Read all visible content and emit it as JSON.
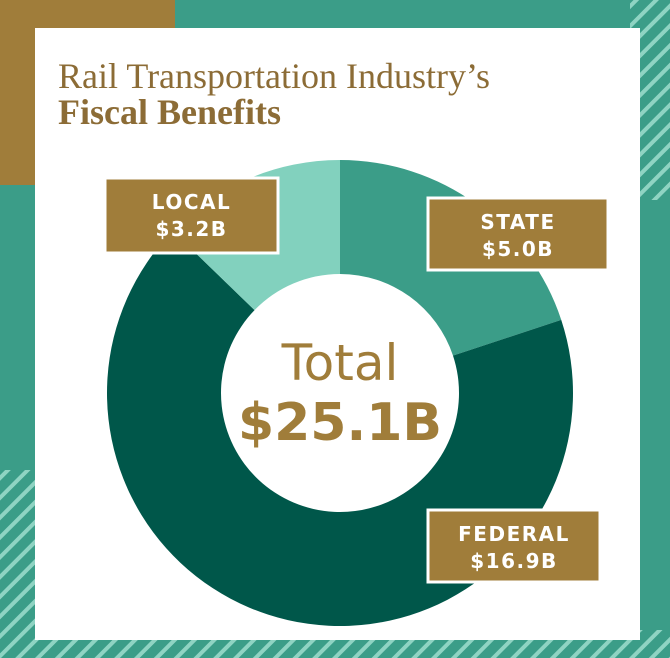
{
  "chart_data": {
    "type": "donut",
    "title": [
      "Rail Transportation Industry’s",
      "Fiscal Benefits"
    ],
    "categories": [
      "STATE",
      "FEDERAL",
      "LOCAL"
    ],
    "values": [
      5.0,
      16.9,
      3.2
    ],
    "value_labels": [
      "$5.0B",
      "$16.9B",
      "$3.2B"
    ],
    "colors": [
      "#3b9d88",
      "#00574a",
      "#82d1be"
    ],
    "center_label": "Total",
    "total": 25.1,
    "total_label": "$25.1B"
  }
}
